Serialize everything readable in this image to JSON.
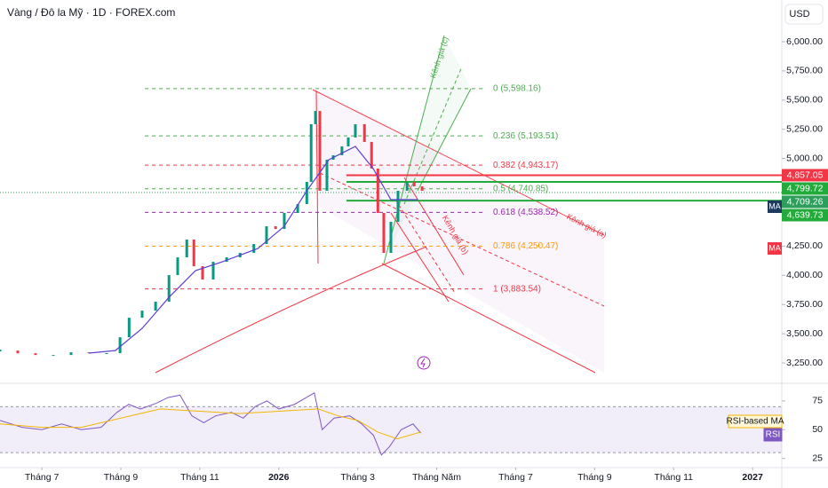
{
  "chart_data": [
    {
      "type": "candlestick",
      "title": "Vàng / Đô la Mỹ · 1D · FOREX.com",
      "currency": "USD",
      "xlim": [
        -1.06,
        18.74
      ],
      "ylim": [
        3091,
        6357
      ],
      "yticks": [
        {
          "value": 6000,
          "label": "6,000.00"
        },
        {
          "value": 5750,
          "label": "5,750.00"
        },
        {
          "value": 5500,
          "label": "5,500.00"
        },
        {
          "value": 5250,
          "label": "5,250.00"
        },
        {
          "value": 5000,
          "label": "5,000.00"
        },
        {
          "value": 4250,
          "label": "4,250.00"
        },
        {
          "value": 4000,
          "label": "4,000.00"
        },
        {
          "value": 3750,
          "label": "3,750.00"
        },
        {
          "value": 3500,
          "label": "3,500.00"
        },
        {
          "value": 3250,
          "label": "3,250.00"
        }
      ],
      "x": [
        -1.06,
        -0.61,
        -0.16,
        0.29,
        0.74,
        1.19,
        1.64,
        1.98,
        2.21,
        2.54,
        2.88,
        3.22,
        3.44,
        3.67,
        3.85,
        4.07,
        4.34,
        4.68,
        5.02,
        5.37,
        5.69,
        5.92,
        6.14,
        6.48,
        6.71,
        6.82,
        6.93,
        7.04,
        7.22,
        7.38,
        7.6,
        7.76,
        7.94,
        8.17,
        8.35,
        8.51,
        8.66,
        8.84,
        9.02,
        9.25,
        9.43,
        9.63
      ],
      "values": [
        3356,
        3333,
        3318,
        3318,
        3341,
        3334,
        3334,
        3470,
        3637,
        3698,
        3774,
        4002,
        4154,
        4306,
        4078,
        3964,
        4116,
        4154,
        4192,
        4268,
        4420,
        4397,
        4534,
        4610,
        4800,
        5294,
        5407,
        4724,
        4990,
        5028,
        5104,
        5180,
        5294,
        5142,
        4914,
        4534,
        4192,
        4458,
        4724,
        4800,
        4762,
        4724
      ],
      "up_color": "#089981",
      "down_color": "#f23645",
      "ma": {
        "color": "#5b3fd1",
        "x": [
          1.19,
          1.86,
          2.54,
          3.22,
          3.89,
          4.57,
          5.47,
          6.14,
          6.71,
          7.27,
          7.94,
          8.39,
          8.84,
          9.52
        ],
        "values": [
          3334,
          3356,
          3546,
          3812,
          4040,
          4116,
          4230,
          4420,
          4724,
          4990,
          5104,
          4914,
          4648,
          4648
        ]
      },
      "fib": [
        {
          "value": 5598.16,
          "label": "0 (5,598.16)",
          "color": "#4caf50"
        },
        {
          "value": 5193.51,
          "label": "0.236 (5,193.51)",
          "color": "#4caf50"
        },
        {
          "value": 4943.17,
          "label": "0.382 (4,943.17)",
          "color": "#f23645"
        },
        {
          "value": 4740.85,
          "label": "0.5 (4,740.85)",
          "color": "#4caf50"
        },
        {
          "value": 4538.52,
          "label": "0.618 (4,538.52)",
          "color": "#9c27b0"
        },
        {
          "value": 4250.47,
          "label": "0.786 (4,250.47)",
          "color": "#ff9800"
        },
        {
          "value": 3883.54,
          "label": "1 (3,883.54)",
          "color": "#f23645"
        }
      ],
      "price_labels": [
        {
          "value": 4857.05,
          "label": "4,857.05",
          "color": "#f23645"
        },
        {
          "value": 4799.72,
          "label": "4,799.72",
          "color": "#22ab3a"
        },
        {
          "value": 4709.26,
          "label": "4,709.26",
          "color": "#2e9e5b"
        },
        {
          "value": 4639.73,
          "label": "4,639.73",
          "color": "#22ab3a"
        }
      ],
      "ma_badges": [
        "MA",
        "MA"
      ],
      "annotations": [
        "Kênh giá (a)",
        "Kênh giá (b)",
        "Kênh giá (c)"
      ]
    },
    {
      "type": "line",
      "xlim": [
        -1.06,
        18.74
      ],
      "ylim": [
        17,
        88
      ],
      "yticks": [
        75,
        50,
        25
      ],
      "band": [
        30,
        70
      ],
      "xticks": [
        {
          "value": 0,
          "label": "Tháng 7"
        },
        {
          "value": 2,
          "label": "Tháng 9"
        },
        {
          "value": 4,
          "label": "Tháng 11"
        },
        {
          "value": 6,
          "label": "2026"
        },
        {
          "value": 8,
          "label": "Tháng 3"
        },
        {
          "value": 10,
          "label": "Tháng Năm"
        },
        {
          "value": 12,
          "label": "Tháng 7"
        },
        {
          "value": 14,
          "label": "Tháng 9"
        },
        {
          "value": 16,
          "label": "Tháng 11"
        },
        {
          "value": 18,
          "label": "2027"
        }
      ],
      "series": [
        {
          "name": "RSI",
          "color": "#7e57c2",
          "x": [
            -1.06,
            -0.5,
            0,
            0.5,
            1,
            1.5,
            1.9,
            2.2,
            2.5,
            2.9,
            3.2,
            3.5,
            3.8,
            4.1,
            4.4,
            4.8,
            5.1,
            5.4,
            5.7,
            6,
            6.4,
            6.7,
            6.9,
            7.1,
            7.4,
            7.8,
            8.1,
            8.4,
            8.6,
            8.8,
            9.1,
            9.4,
            9.6
          ],
          "values": [
            58,
            52,
            50,
            55,
            50,
            52,
            65,
            72,
            68,
            73,
            78,
            80,
            62,
            56,
            62,
            65,
            60,
            70,
            75,
            68,
            72,
            78,
            82,
            50,
            60,
            62,
            55,
            45,
            28,
            35,
            50,
            55,
            47
          ]
        },
        {
          "name": "RSI-based MA",
          "color": "#f2b600",
          "x": [
            -1.06,
            0,
            1,
            2,
            3,
            4,
            5,
            6,
            7,
            7.5,
            8,
            8.5,
            9,
            9.6
          ],
          "values": [
            55,
            52,
            52,
            60,
            68,
            66,
            64,
            66,
            68,
            62,
            58,
            48,
            42,
            48
          ]
        }
      ]
    }
  ]
}
